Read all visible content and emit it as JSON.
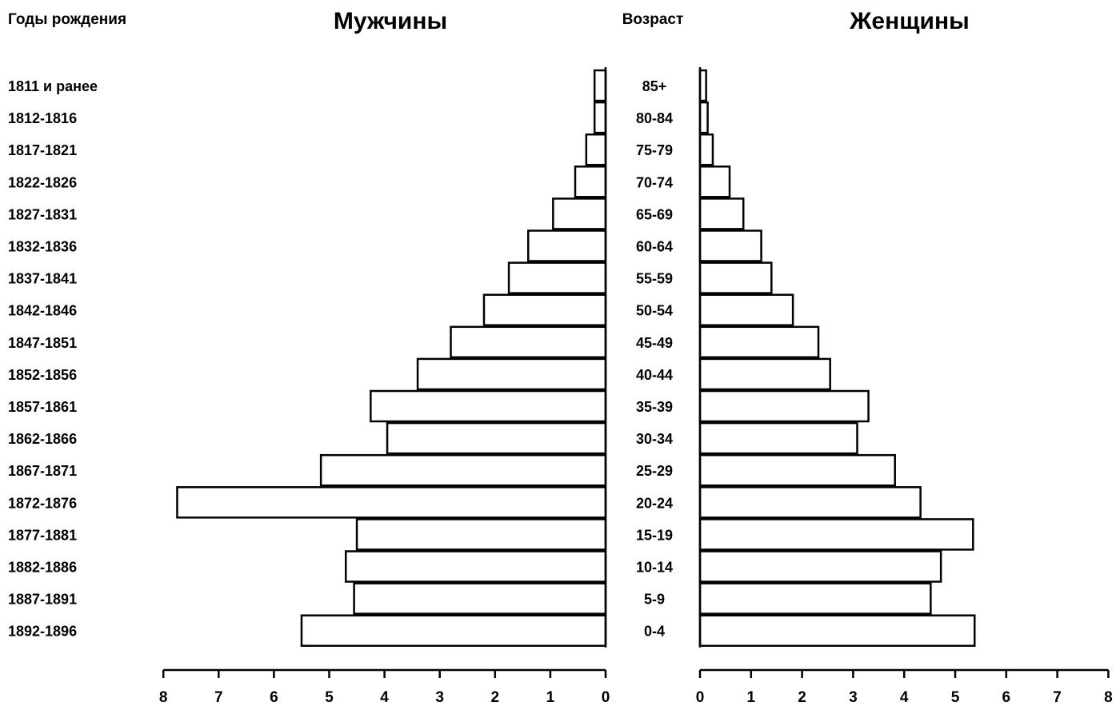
{
  "chart_data": {
    "type": "bar",
    "orientation": "horizontal-population-pyramid",
    "column_headers": {
      "birth_years": "Годы рождения",
      "men": "Мужчины",
      "age": "Возраст",
      "women": "Женщины"
    },
    "birth_years": [
      "1811 и ранее",
      "1812-1816",
      "1817-1821",
      "1822-1826",
      "1827-1831",
      "1832-1836",
      "1837-1841",
      "1842-1846",
      "1847-1851",
      "1852-1856",
      "1857-1861",
      "1862-1866",
      "1867-1871",
      "1872-1876",
      "1877-1881",
      "1882-1886",
      "1887-1891",
      "1892-1896"
    ],
    "categories": [
      "85+",
      "80-84",
      "75-79",
      "70-74",
      "65-69",
      "60-64",
      "55-59",
      "50-54",
      "45-49",
      "40-44",
      "35-39",
      "30-34",
      "25-29",
      "20-24",
      "15-19",
      "10-14",
      "5-9",
      "0-4"
    ],
    "series": [
      {
        "name": "Мужчины",
        "values": [
          0.2,
          0.2,
          0.35,
          0.55,
          0.95,
          1.4,
          1.75,
          2.2,
          2.8,
          3.4,
          4.25,
          3.95,
          5.15,
          7.75,
          4.5,
          4.7,
          4.55,
          5.5
        ]
      },
      {
        "name": "Женщины",
        "values": [
          0.12,
          0.15,
          0.25,
          0.58,
          0.85,
          1.2,
          1.4,
          1.82,
          2.32,
          2.55,
          3.3,
          3.08,
          3.82,
          4.32,
          5.35,
          4.72,
          4.52,
          5.38
        ]
      }
    ],
    "xlim_men": [
      8,
      0
    ],
    "xlim_women": [
      0,
      8
    ],
    "men_ticks": [
      "8",
      "7",
      "6",
      "5",
      "4",
      "3",
      "2",
      "1",
      "0"
    ],
    "women_ticks": [
      "0",
      "1",
      "2",
      "3",
      "4",
      "5",
      "6",
      "7",
      "8"
    ]
  }
}
